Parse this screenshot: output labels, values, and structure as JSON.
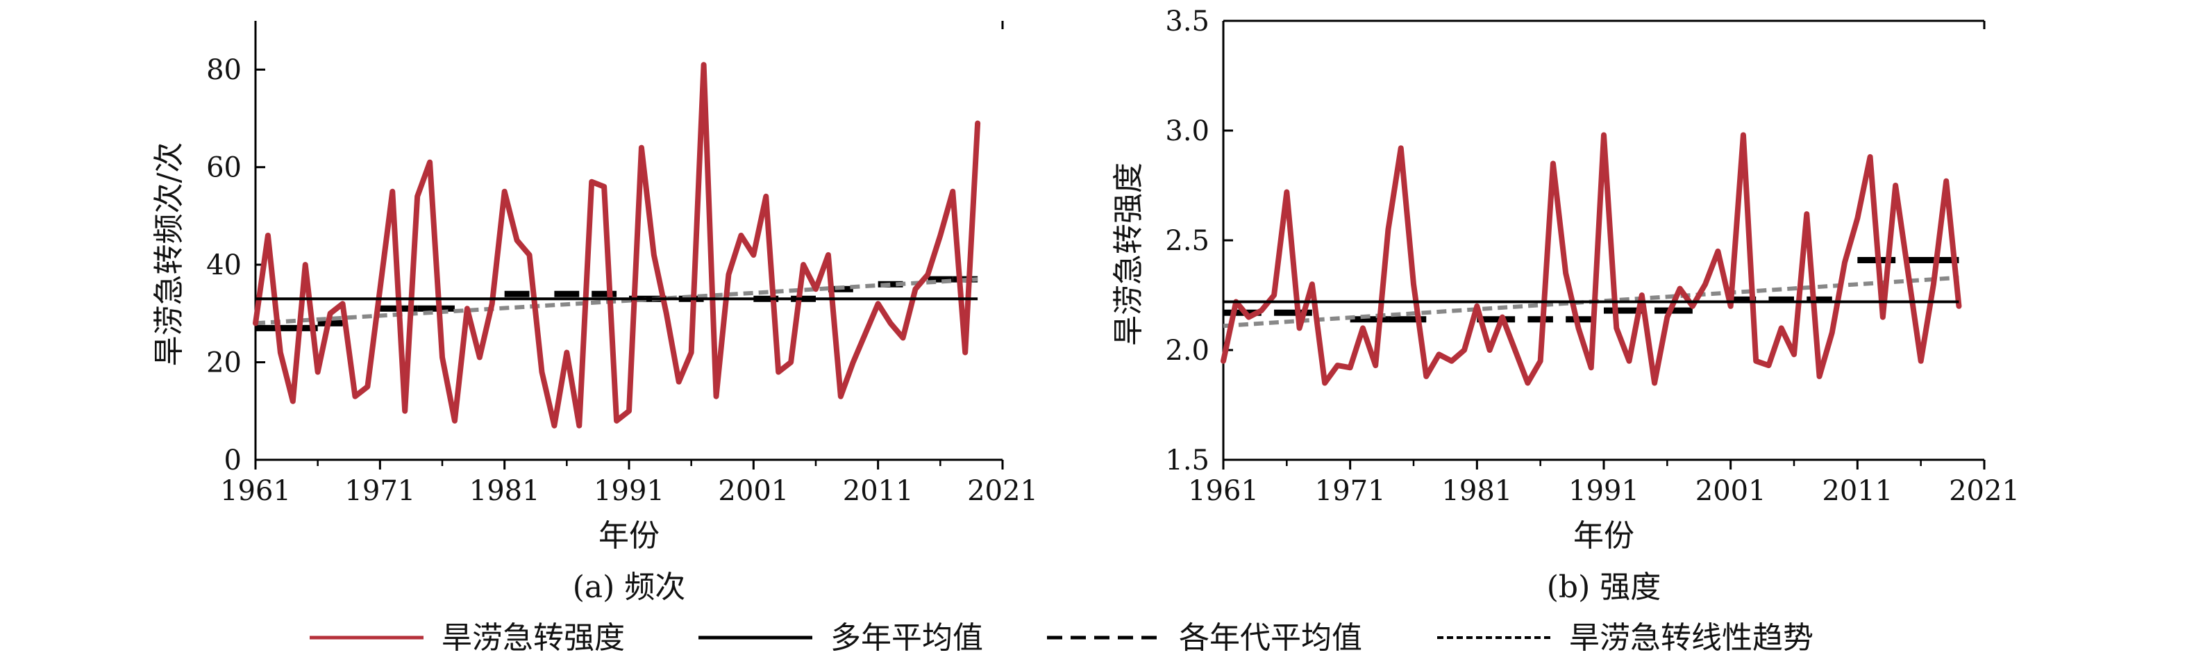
{
  "chart_data": [
    {
      "type": "line",
      "caption": "(a) 频次",
      "xlabel": "年份",
      "ylabel": "旱涝急转频次/次",
      "xlim": [
        1961,
        2021
      ],
      "ylim": [
        0,
        90
      ],
      "xticks": [
        1961,
        1971,
        1981,
        1991,
        2001,
        2011,
        2021
      ],
      "yticks": [
        0,
        20,
        40,
        60,
        80
      ],
      "series": [
        {
          "name": "旱涝急转强度",
          "color": "#b5303a",
          "x": [
            1961,
            1962,
            1963,
            1964,
            1965,
            1966,
            1967,
            1968,
            1969,
            1970,
            1971,
            1972,
            1973,
            1974,
            1975,
            1976,
            1977,
            1978,
            1979,
            1980,
            1981,
            1982,
            1983,
            1984,
            1985,
            1986,
            1987,
            1988,
            1989,
            1990,
            1991,
            1992,
            1993,
            1994,
            1995,
            1996,
            1997,
            1998,
            1999,
            2000,
            2001,
            2002,
            2003,
            2004,
            2005,
            2006,
            2007,
            2008,
            2009,
            2010,
            2011,
            2012,
            2013,
            2014,
            2015,
            2016,
            2017,
            2018,
            2019
          ],
          "y": [
            28,
            46,
            22,
            12,
            40,
            18,
            30,
            32,
            13,
            15,
            35,
            55,
            10,
            54,
            61,
            21,
            8,
            31,
            21,
            32,
            55,
            45,
            42,
            18,
            7,
            22,
            7,
            57,
            56,
            8,
            10,
            64,
            42,
            30,
            16,
            22,
            81,
            13,
            38,
            46,
            42,
            54,
            18,
            20,
            40,
            35,
            42,
            13,
            20,
            26,
            32,
            28,
            25,
            35,
            38,
            46,
            55,
            22,
            69
          ]
        },
        {
          "name": "多年平均值",
          "color": "#000000",
          "x": [
            1961,
            2019
          ],
          "y": [
            33,
            33
          ]
        },
        {
          "name": "各年代平均值",
          "color": "#000000",
          "segments": [
            {
              "x": [
                1961,
                1966
              ],
              "y": [
                27,
                27
              ]
            },
            {
              "x": [
                1966,
                1968
              ],
              "y": [
                28,
                28
              ]
            },
            {
              "x": [
                1971,
                1974
              ],
              "y": [
                31,
                31
              ]
            },
            {
              "x": [
                1974,
                1977
              ],
              "y": [
                31,
                31
              ]
            },
            {
              "x": [
                1981,
                1983
              ],
              "y": [
                34,
                34
              ]
            },
            {
              "x": [
                1985,
                1987
              ],
              "y": [
                34,
                34
              ]
            },
            {
              "x": [
                1988,
                1990
              ],
              "y": [
                34,
                34
              ]
            },
            {
              "x": [
                1991,
                1994
              ],
              "y": [
                33,
                33
              ]
            },
            {
              "x": [
                1995,
                1997
              ],
              "y": [
                33,
                33
              ]
            },
            {
              "x": [
                2001,
                2003
              ],
              "y": [
                33,
                33
              ]
            },
            {
              "x": [
                2004,
                2006
              ],
              "y": [
                33,
                33
              ]
            },
            {
              "x": [
                2007,
                2009
              ],
              "y": [
                35,
                35
              ]
            },
            {
              "x": [
                2011,
                2013
              ],
              "y": [
                36,
                36
              ]
            },
            {
              "x": [
                2015,
                2017
              ],
              "y": [
                37,
                37
              ]
            },
            {
              "x": [
                2017,
                2019
              ],
              "y": [
                37,
                37
              ]
            }
          ]
        },
        {
          "name": "旱涝急转线性趋势",
          "color": "#888888",
          "x": [
            1961,
            2019
          ],
          "y": [
            28,
            37
          ]
        }
      ]
    },
    {
      "type": "line",
      "caption": "(b) 强度",
      "xlabel": "年份",
      "ylabel": "旱涝急转强度",
      "xlim": [
        1961,
        2021
      ],
      "ylim": [
        1.5,
        3.5
      ],
      "xticks": [
        1961,
        1971,
        1981,
        1991,
        2001,
        2011,
        2021
      ],
      "yticks": [
        "1.5",
        "2.0",
        "2.5",
        "3.0",
        "3.5"
      ],
      "series": [
        {
          "name": "旱涝急转强度",
          "color": "#b5303a",
          "x": [
            1961,
            1962,
            1963,
            1964,
            1965,
            1966,
            1967,
            1968,
            1969,
            1970,
            1971,
            1972,
            1973,
            1974,
            1975,
            1976,
            1977,
            1978,
            1979,
            1980,
            1981,
            1982,
            1983,
            1984,
            1985,
            1986,
            1987,
            1988,
            1989,
            1990,
            1991,
            1992,
            1993,
            1994,
            1995,
            1996,
            1997,
            1998,
            1999,
            2000,
            2001,
            2002,
            2003,
            2004,
            2005,
            2006,
            2007,
            2008,
            2009,
            2010,
            2011,
            2012,
            2013,
            2014,
            2015,
            2016,
            2017,
            2018,
            2019
          ],
          "y": [
            1.95,
            2.22,
            2.15,
            2.18,
            2.25,
            2.72,
            2.1,
            2.3,
            1.85,
            1.93,
            1.92,
            2.1,
            1.93,
            2.55,
            2.92,
            2.3,
            1.88,
            1.98,
            1.95,
            2.0,
            2.2,
            2.0,
            2.15,
            2.0,
            1.85,
            1.95,
            2.85,
            2.35,
            2.1,
            1.92,
            2.98,
            2.1,
            1.95,
            2.25,
            1.85,
            2.15,
            2.28,
            2.2,
            2.3,
            2.45,
            2.2,
            2.98,
            1.95,
            1.93,
            2.1,
            1.98,
            2.62,
            1.88,
            2.08,
            2.4,
            2.6,
            2.88,
            2.15,
            2.75,
            2.35,
            1.95,
            2.3,
            2.77,
            2.2
          ]
        },
        {
          "name": "多年平均值",
          "color": "#000000",
          "x": [
            1961,
            2019
          ],
          "y": [
            2.22,
            2.22
          ]
        },
        {
          "name": "各年代平均值",
          "color": "#000000",
          "segments": [
            {
              "x": [
                1961,
                1964
              ],
              "y": [
                2.17,
                2.17
              ]
            },
            {
              "x": [
                1965,
                1968
              ],
              "y": [
                2.17,
                2.17
              ]
            },
            {
              "x": [
                1971,
                1974
              ],
              "y": [
                2.14,
                2.14
              ]
            },
            {
              "x": [
                1974,
                1977
              ],
              "y": [
                2.14,
                2.14
              ]
            },
            {
              "x": [
                1981,
                1984
              ],
              "y": [
                2.14,
                2.14
              ]
            },
            {
              "x": [
                1985,
                1987
              ],
              "y": [
                2.14,
                2.14
              ]
            },
            {
              "x": [
                1988,
                1990
              ],
              "y": [
                2.14,
                2.14
              ]
            },
            {
              "x": [
                1991,
                1994
              ],
              "y": [
                2.18,
                2.18
              ]
            },
            {
              "x": [
                1995,
                1998
              ],
              "y": [
                2.18,
                2.18
              ]
            },
            {
              "x": [
                2001,
                2003
              ],
              "y": [
                2.23,
                2.23
              ]
            },
            {
              "x": [
                2004,
                2006
              ],
              "y": [
                2.23,
                2.23
              ]
            },
            {
              "x": [
                2007,
                2009
              ],
              "y": [
                2.23,
                2.23
              ]
            },
            {
              "x": [
                2011,
                2014
              ],
              "y": [
                2.41,
                2.41
              ]
            },
            {
              "x": [
                2015,
                2019
              ],
              "y": [
                2.41,
                2.41
              ]
            }
          ]
        },
        {
          "name": "旱涝急转线性趋势",
          "color": "#888888",
          "x": [
            1961,
            2019
          ],
          "y": [
            2.11,
            2.33
          ]
        }
      ]
    }
  ],
  "legend": {
    "placement": "bottom",
    "items": [
      {
        "label": "旱涝急转强度",
        "color": "#b5303a",
        "style": "solid"
      },
      {
        "label": "多年平均值",
        "color": "#000000",
        "style": "solid"
      },
      {
        "label": "各年代平均值",
        "color": "#000000",
        "style": "dashed"
      },
      {
        "label": "旱涝急转线性趋势",
        "color": "#000000",
        "style": "dotted"
      }
    ]
  }
}
